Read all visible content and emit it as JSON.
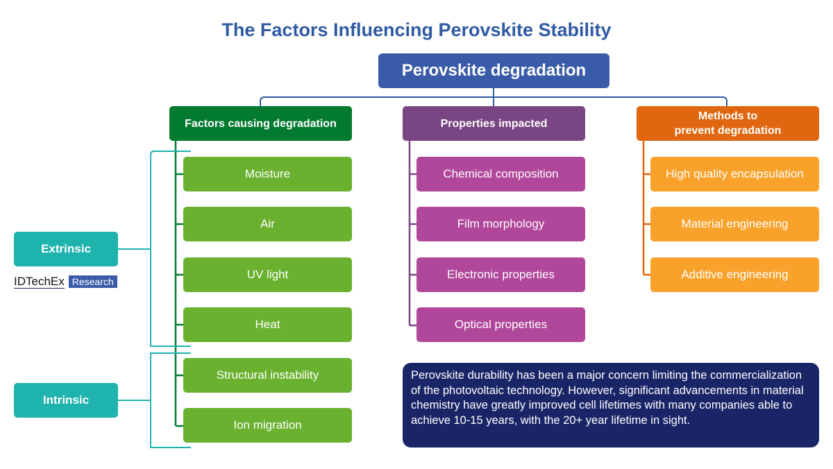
{
  "title": "The Factors Influencing Perovskite Stability",
  "root": "Perovskite degradation",
  "columns": [
    {
      "header": "Factors causing degradation",
      "color": "#027a2f",
      "item_color": "#6ab130",
      "items": [
        "Moisture",
        "Air",
        "UV light",
        "Heat",
        "Structural instability",
        "Ion migration"
      ]
    },
    {
      "header": "Properties impacted",
      "color": "#7a4583",
      "item_color": "#b0479a",
      "items": [
        "Chemical composition",
        "Film morphology",
        "Electronic properties",
        "Optical properties"
      ]
    },
    {
      "header": "Methods to prevent degradation",
      "header_lines": [
        "Methods to",
        "prevent degradation"
      ],
      "color": "#e0670f",
      "item_color": "#f9a22b",
      "items": [
        "High quality encapsulation",
        "Material engineering",
        "Additive engineering"
      ]
    }
  ],
  "groups": {
    "extrinsic": "Extrinsic",
    "intrinsic": "Intrinsic",
    "color": "#1fb3ae"
  },
  "logo": {
    "name": "IDTechEx",
    "tag": "Research"
  },
  "note": "Perovskite durability has been a major concern limiting the commercialization of the photovoltaic technology. However, significant advancements in material chemistry have greatly improved cell lifetimes with many companies able to achieve 10-15 years, with the 20+ year lifetime in sight."
}
